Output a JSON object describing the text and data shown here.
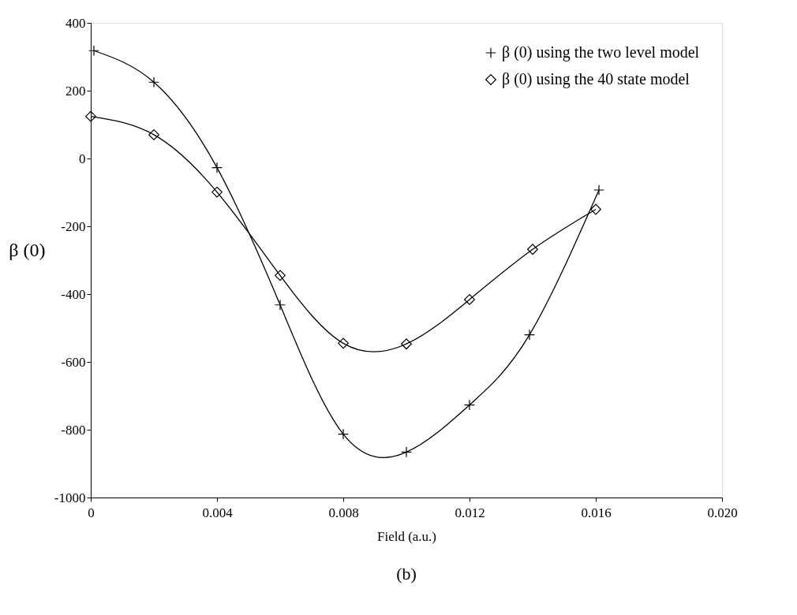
{
  "chart_data": {
    "type": "line",
    "xlabel": "Field (a.u.)",
    "ylabel": "β (0)",
    "annotations": [
      "(b)"
    ],
    "xlim": [
      0,
      0.02
    ],
    "xticks": [
      0,
      0.004,
      0.008,
      0.012,
      {
        "value": 0.02,
        "label": "0.020"
      },
      {
        "value": 0.016,
        "label": "0.016"
      }
    ],
    "ylim": [
      -1000,
      400
    ],
    "yticks": [
      -1000,
      -800,
      -600,
      -400,
      -200,
      0,
      200,
      400
    ],
    "grid": false,
    "legend": "top right",
    "line_style": "solid",
    "series": [
      {
        "name": "β (0) using the two level model",
        "color": "#000000",
        "marker": "cross",
        "x": [
          0.0001,
          0.002,
          0.004,
          0.006,
          0.008,
          0.01,
          0.012,
          0.0139,
          0.0161
        ],
        "values": [
          318,
          225,
          -27,
          -432,
          -813,
          -866,
          -727,
          -520,
          -93
        ]
      },
      {
        "name": "β (0) using the 40 state model",
        "color": "#000000",
        "marker": "diamond",
        "x": [
          0.0,
          0.002,
          0.004,
          0.006,
          0.008,
          0.01,
          0.012,
          0.014,
          0.016
        ],
        "values": [
          124,
          70,
          -99,
          -345,
          -545,
          -547,
          -416,
          -268,
          -150
        ]
      }
    ]
  }
}
